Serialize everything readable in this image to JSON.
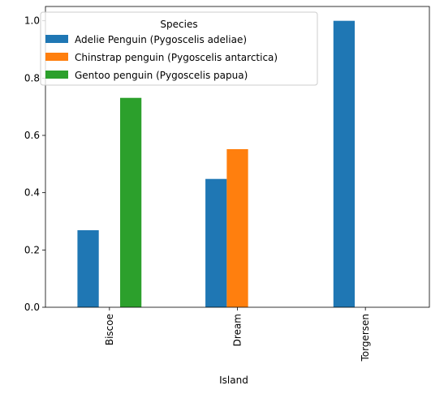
{
  "chart_data": {
    "type": "bar",
    "categories": [
      "Biscoe",
      "Dream",
      "Torgersen"
    ],
    "series": [
      {
        "name": "Adelie Penguin (Pygoscelis adeliae)",
        "color": "#1f77b4",
        "values": [
          0.269,
          0.448,
          1.0
        ]
      },
      {
        "name": "Chinstrap penguin (Pygoscelis antarctica)",
        "color": "#ff7f0e",
        "values": [
          0.0,
          0.552,
          0.0
        ]
      },
      {
        "name": "Gentoo penguin (Pygoscelis papua)",
        "color": "#2ca02c",
        "values": [
          0.731,
          0.0,
          0.0
        ]
      }
    ],
    "xlabel": "Island",
    "ylabel": "",
    "ylim": [
      0,
      1.05
    ],
    "yticks": [
      "0.0",
      "0.2",
      "0.4",
      "0.6",
      "0.8",
      "1.0"
    ],
    "legend": {
      "title": "Species",
      "position": "top-left"
    },
    "grid": false
  }
}
